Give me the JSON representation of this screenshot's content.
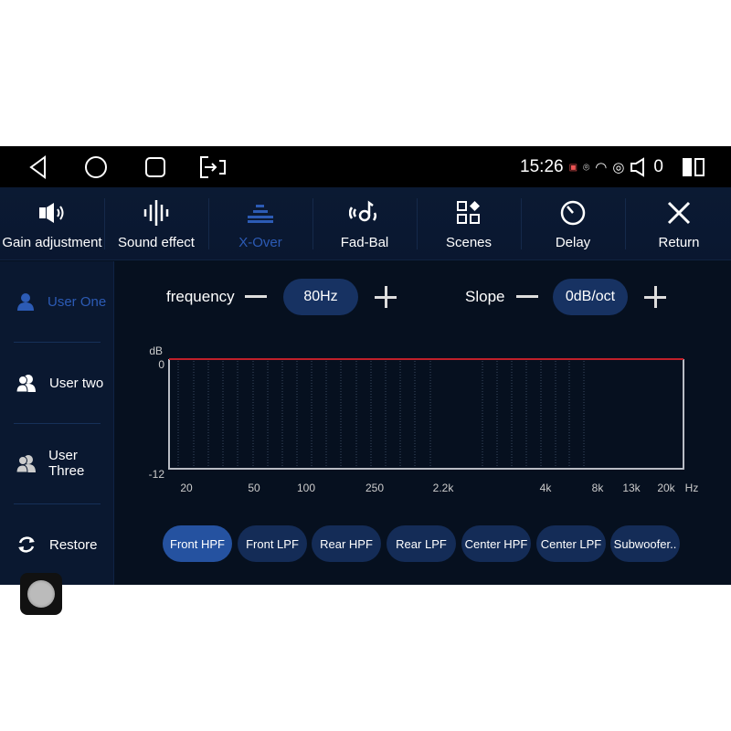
{
  "status": {
    "time": "15:26",
    "volume": "0"
  },
  "tabs": [
    {
      "label": "Gain adjustment",
      "icon": "speaker-icon"
    },
    {
      "label": "Sound effect",
      "icon": "waveform-icon"
    },
    {
      "label": "X-Over",
      "icon": "equalizer-icon",
      "active": true
    },
    {
      "label": "Fad-Bal",
      "icon": "fader-balance-icon"
    },
    {
      "label": "Scenes",
      "icon": "scenes-icon"
    },
    {
      "label": "Delay",
      "icon": "timer-icon"
    },
    {
      "label": "Return",
      "icon": "close-icon"
    }
  ],
  "sidebar": {
    "items": [
      {
        "label": "User One",
        "active": true
      },
      {
        "label": "User two"
      },
      {
        "label": "User Three"
      },
      {
        "label": "Restore"
      }
    ]
  },
  "controls": {
    "frequency_label": "frequency",
    "frequency_value": "80Hz",
    "slope_label": "Slope",
    "slope_value": "0dB/oct"
  },
  "chart_data": {
    "type": "line",
    "ylabel": "dB",
    "xunit": "Hz",
    "yticks": [
      "0",
      "-12"
    ],
    "ylim": [
      -12,
      0
    ],
    "xticks": [
      "20",
      "50",
      "100",
      "250",
      "2.2k",
      "4k",
      "8k",
      "13k",
      "20k"
    ],
    "series": [
      {
        "values": [
          0,
          0,
          0,
          0,
          0,
          0,
          0,
          0,
          0
        ]
      }
    ],
    "line_color": "#c0202a",
    "grid": true
  },
  "channels": [
    {
      "label": "Front HPF",
      "active": true
    },
    {
      "label": "Front LPF"
    },
    {
      "label": "Rear HPF"
    },
    {
      "label": "Rear LPF"
    },
    {
      "label": "Center HPF"
    },
    {
      "label": "Center LPF"
    },
    {
      "label": "Subwoofer.."
    }
  ],
  "colors": {
    "accent": "#2c5bb5",
    "background": "#06101f",
    "active_chip": "#2552a0",
    "chip": "#142c57"
  }
}
